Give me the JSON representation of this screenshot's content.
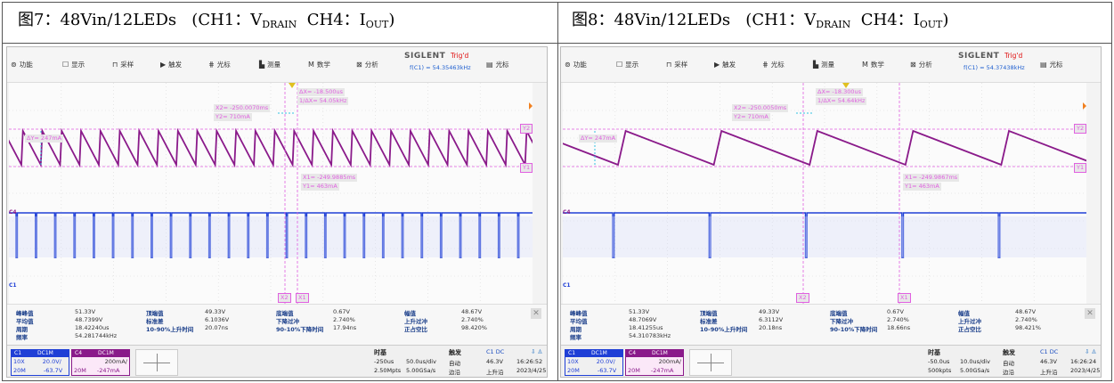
{
  "panels": [
    {
      "caption_prefix": "图7：48Vin/12LEDs",
      "caption_ch1": "(CH1：V",
      "caption_ch1_sub": "DRAIN",
      "caption_ch4": "CH4：I",
      "caption_ch4_sub": "OUT",
      "caption_close": ")",
      "menu": [
        "功能",
        "显示",
        "采样",
        "触发",
        "光标",
        "测量",
        "数学",
        "分析",
        "光标"
      ],
      "brand": "SIGLENT",
      "trig": "Trig'd",
      "freq": "f(C1) = 54.35463kHz",
      "cursor": {
        "dx": "ΔX= -18.500us",
        "invdx": "1/ΔX= 54.05kHz",
        "x2": "X2= -250.0070ms",
        "y2": "Y2= 710mA",
        "dy": "ΔY= 247mA",
        "x1": "X1= -249.9885ms",
        "y1": "Y1= 463mA"
      },
      "cursor_tags": {
        "y1": "Y1",
        "y2": "Y2",
        "x1": "X1",
        "x2": "X2"
      },
      "ch_markers": {
        "ch1": "C1",
        "ch4": "C4"
      },
      "meas_rows": [
        [
          "峰峰值",
          "51.33V",
          "顶端值",
          "49.33V",
          "底端值",
          "0.67V",
          "幅值",
          "48.67V"
        ],
        [
          "平均值",
          "48.7399V",
          "标准差",
          "6.1036V",
          "下降过冲",
          "2.740%",
          "上升过冲",
          "2.740%"
        ],
        [
          "周期",
          "18.42240us",
          "10-90%上升时间",
          "20.07ns",
          "90-10%下降时间",
          "17.94ns",
          "正占空比",
          "98.420%"
        ],
        [
          "频率",
          "54.281744kHz",
          "",
          "",
          "",
          "",
          "",
          ""
        ]
      ],
      "ch1": {
        "name": "C1",
        "coupling": "DC1M",
        "probe": "10X",
        "scale": "20.0V/",
        "bw": "20M",
        "offset": "-63.7V"
      },
      "ch4": {
        "name": "C4",
        "coupling": "DC1M",
        "scale": "200mA/",
        "bw": "20M",
        "offset": "-247mA"
      },
      "timebase": {
        "title": "时基",
        "delay": "-250us",
        "div": "50.0us/div",
        "pts": "2.50Mpts",
        "rate": "5.00GSa/s"
      },
      "trigger": {
        "title": "触发",
        "mode": "自动",
        "edge": "边沿",
        "src": "C1 DC",
        "level": "46.3V",
        "slope": "上升沿"
      },
      "clock": {
        "time": "16:26:52",
        "date": "2023/4/25"
      },
      "chart_data": {
        "type": "line",
        "title": "",
        "series": [
          {
            "name": "CH4 IOUT",
            "period_us": 18.5,
            "min_mA": 463,
            "max_mA": 710,
            "shape": "sawtooth"
          },
          {
            "name": "CH1 VDRAIN",
            "period_us": 18.4224,
            "min_V": 0.67,
            "max_V": 49.33,
            "duty_pct": 98.42
          }
        ],
        "time_per_div_us": 50.0,
        "grid": true
      }
    },
    {
      "caption_prefix": "图8：48Vin/12LEDs",
      "caption_ch1": "(CH1：V",
      "caption_ch1_sub": "DRAIN",
      "caption_ch4": "CH4：I",
      "caption_ch4_sub": "OUT",
      "caption_close": ")",
      "menu": [
        "功能",
        "显示",
        "采样",
        "触发",
        "光标",
        "测量",
        "数学",
        "分析",
        "光标"
      ],
      "brand": "SIGLENT",
      "trig": "Trig'd",
      "freq": "f(C1) = 54.37438kHz",
      "cursor": {
        "dx": "ΔX= -18.300us",
        "invdx": "1/ΔX= 54.64kHz",
        "x2": "X2= -250.0050ms",
        "y2": "Y2= 710mA",
        "dy": "ΔY= 247mA",
        "x1": "X1= -249.9867ms",
        "y1": "Y1= 463mA"
      },
      "cursor_tags": {
        "y1": "Y1",
        "y2": "Y2",
        "x1": "X1",
        "x2": "X2"
      },
      "ch_markers": {
        "ch1": "C1",
        "ch4": "C4"
      },
      "meas_rows": [
        [
          "峰峰值",
          "51.33V",
          "顶端值",
          "49.33V",
          "底端值",
          "0.67V",
          "幅值",
          "48.67V"
        ],
        [
          "平均值",
          "48.7069V",
          "标准差",
          "6.3112V",
          "下降过冲",
          "2.740%",
          "上升过冲",
          "2.740%"
        ],
        [
          "周期",
          "18.41255us",
          "10-90%上升时间",
          "20.18ns",
          "90-10%下降时间",
          "18.66ns",
          "正占空比",
          "98.421%"
        ],
        [
          "频率",
          "54.310783kHz",
          "",
          "",
          "",
          "",
          "",
          ""
        ]
      ],
      "ch1": {
        "name": "C1",
        "coupling": "DC1M",
        "probe": "10X",
        "scale": "20.0V/",
        "bw": "20M",
        "offset": "-63.7V"
      },
      "ch4": {
        "name": "C4",
        "coupling": "DC1M",
        "scale": "200mA/",
        "bw": "20M",
        "offset": "-247mA"
      },
      "timebase": {
        "title": "时基",
        "delay": "-50.0us",
        "div": "10.0us/div",
        "pts": "500kpts",
        "rate": "5.00GSa/s"
      },
      "trigger": {
        "title": "触发",
        "mode": "自动",
        "edge": "边沿",
        "src": "C1 DC",
        "level": "46.3V",
        "slope": "上升沿"
      },
      "clock": {
        "time": "16:26:24",
        "date": "2023/4/25"
      },
      "chart_data": {
        "type": "line",
        "title": "",
        "series": [
          {
            "name": "CH4 IOUT",
            "period_us": 18.3,
            "min_mA": 463,
            "max_mA": 710,
            "shape": "sawtooth"
          },
          {
            "name": "CH1 VDRAIN",
            "period_us": 18.41255,
            "min_V": 0.67,
            "max_V": 49.33,
            "duty_pct": 98.421
          }
        ],
        "time_per_div_us": 10.0,
        "grid": true
      }
    }
  ],
  "colors": {
    "ch1": "#1f3fd6",
    "ch4": "#8a1a8a",
    "cursor": "#e060e0",
    "label_bg": "#e8e8e8"
  }
}
